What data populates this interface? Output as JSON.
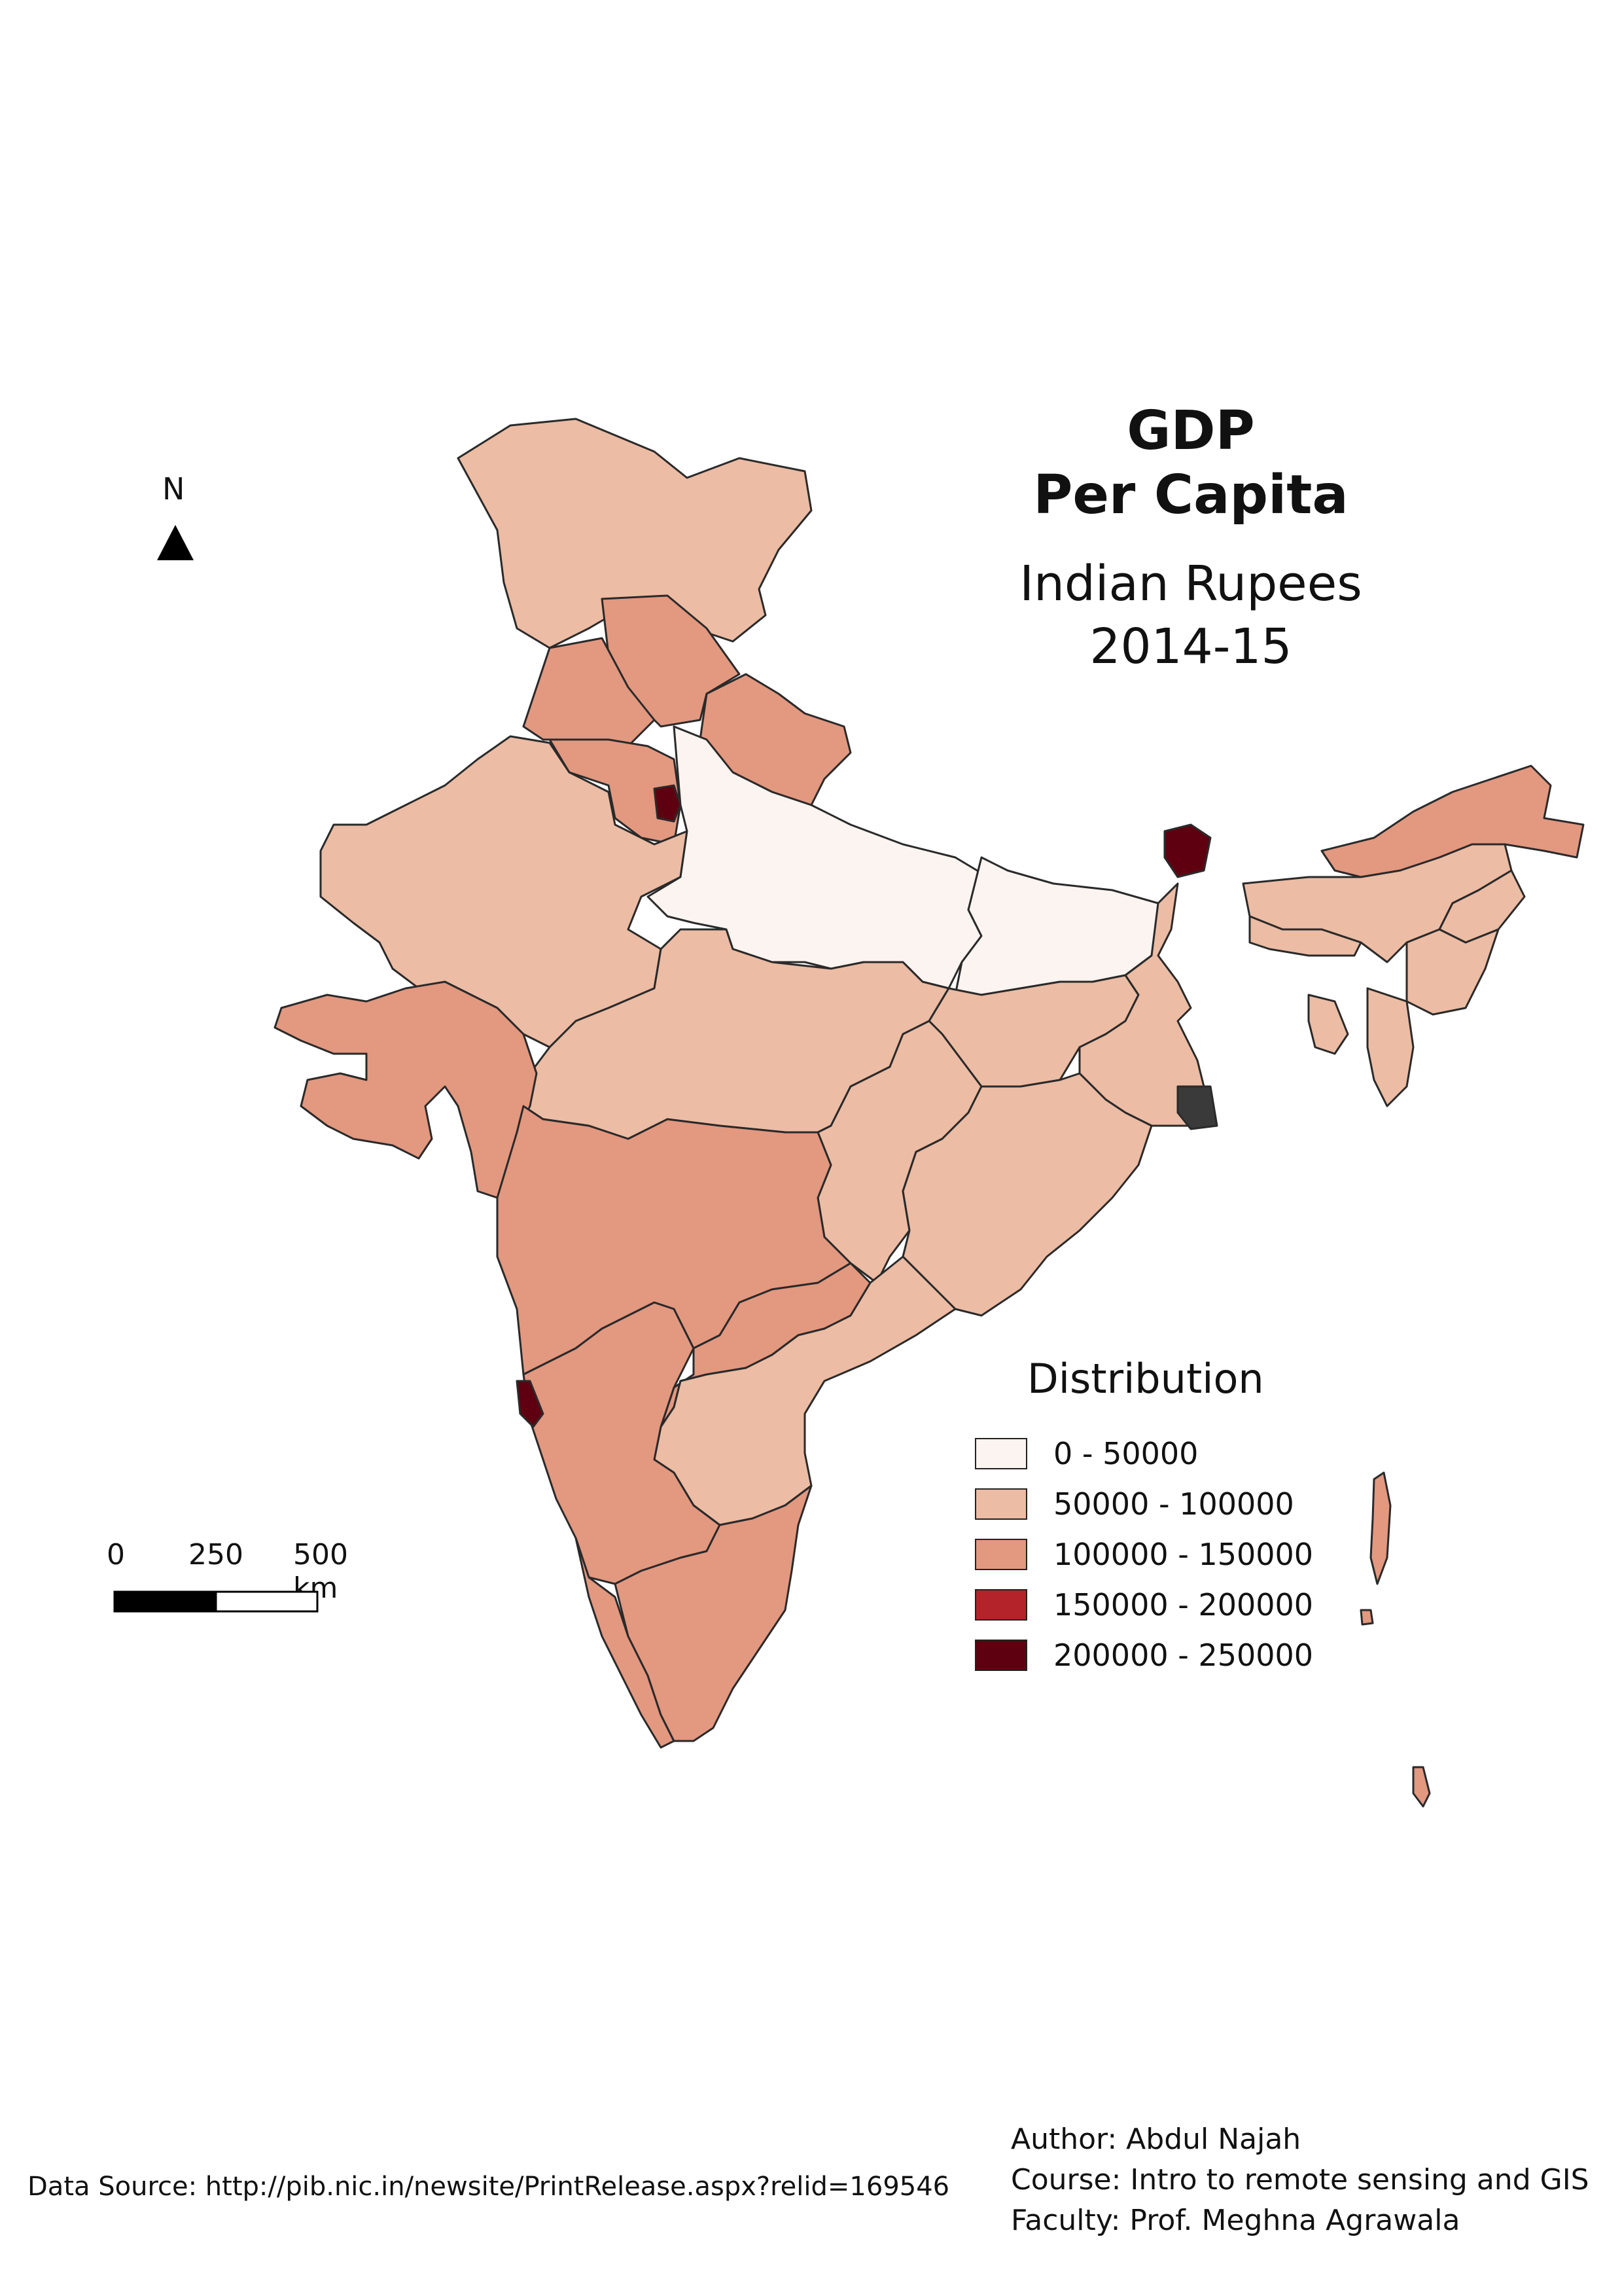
{
  "title": {
    "line1": "GDP",
    "line2": "Per Capita",
    "line3": "Indian Rupees",
    "line4": "2014-15"
  },
  "north": {
    "label": "N"
  },
  "scale": {
    "labels": [
      "0",
      "250",
      "500 km"
    ]
  },
  "legend": {
    "title": "Distribution",
    "classes": [
      {
        "label": "0 - 50000",
        "color": "#fcf4f0"
      },
      {
        "label": "50000 - 100000",
        "color": "#ecbca4"
      },
      {
        "label": "100000 - 150000",
        "color": "#e39880"
      },
      {
        "label": "150000 - 200000",
        "color": "#b5232a"
      },
      {
        "label": "200000 - 250000",
        "color": "#5f0010"
      }
    ]
  },
  "source": "Data Source: http://pib.nic.in/newsite/PrintRelease.aspx?relid=169546",
  "credits": {
    "author": "Author: Abdul Najah",
    "course": "Course: Intro to remote sensing and GIS",
    "faculty": "Faculty: Prof. Meghna Agrawala"
  }
}
